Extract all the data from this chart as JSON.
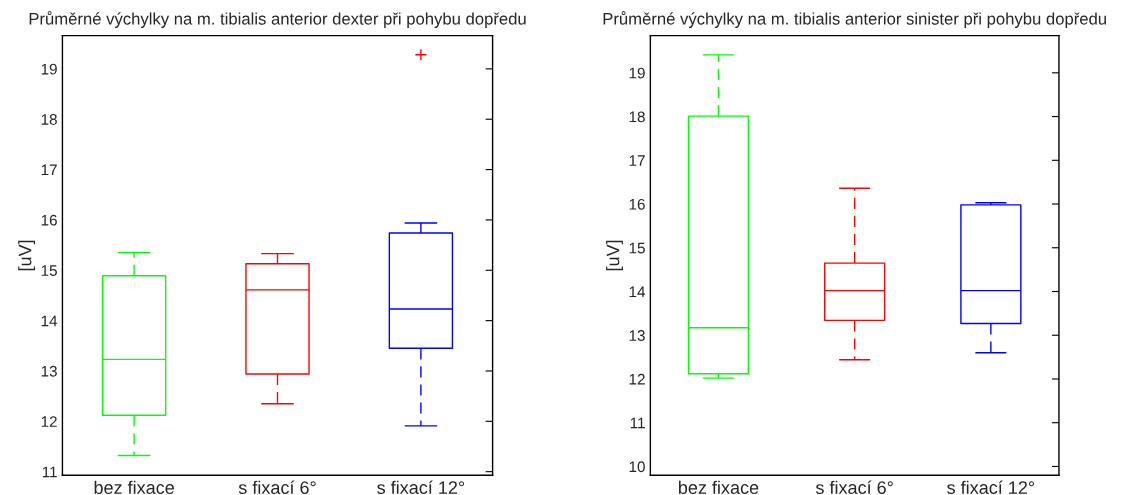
{
  "chart_data": [
    {
      "type": "box",
      "title": "Průměrné výchylky na m. tibialis anterior dexter při pohybu dopředu",
      "ylabel": "[uV]",
      "categories": [
        "bez fixace",
        "s fixací 6°",
        "s fixací 12°"
      ],
      "colors": [
        "#00ff00",
        "#ff0000",
        "#0000ff"
      ],
      "line_style": "dashed",
      "ylim": [
        10.93,
        19.66
      ],
      "yticks": [
        11,
        12,
        13,
        14,
        15,
        16,
        17,
        18,
        19
      ],
      "grid": false,
      "boxes": [
        {
          "low": 11.32,
          "q1": 12.12,
          "median": 13.23,
          "q3": 14.89,
          "high": 15.35
        },
        {
          "low": 12.35,
          "q1": 12.94,
          "median": 14.61,
          "q3": 15.13,
          "high": 15.33
        },
        {
          "low": 11.91,
          "q1": 13.45,
          "median": 14.23,
          "q3": 15.74,
          "high": 15.94,
          "outliers": [
            19.28
          ]
        }
      ]
    },
    {
      "type": "box",
      "title": "Průměrné výchylky na m. tibialis anterior sinister při pohybu dopředu",
      "ylabel": "[uV]",
      "categories": [
        "bez fixace",
        "s fixací 6°",
        "s fixací 12°"
      ],
      "colors": [
        "#00ff00",
        "#ff0000",
        "#0000ff"
      ],
      "line_style": "dashed",
      "ylim": [
        9.8,
        19.85
      ],
      "yticks": [
        10,
        11,
        12,
        13,
        14,
        15,
        16,
        17,
        18,
        19
      ],
      "grid": false,
      "boxes": [
        {
          "low": 12.02,
          "q1": 12.12,
          "median": 13.17,
          "q3": 18.01,
          "high": 19.41
        },
        {
          "low": 12.44,
          "q1": 13.34,
          "median": 14.02,
          "q3": 14.65,
          "high": 16.36
        },
        {
          "low": 12.6,
          "q1": 13.27,
          "median": 14.02,
          "q3": 15.98,
          "high": 16.03
        }
      ]
    }
  ]
}
